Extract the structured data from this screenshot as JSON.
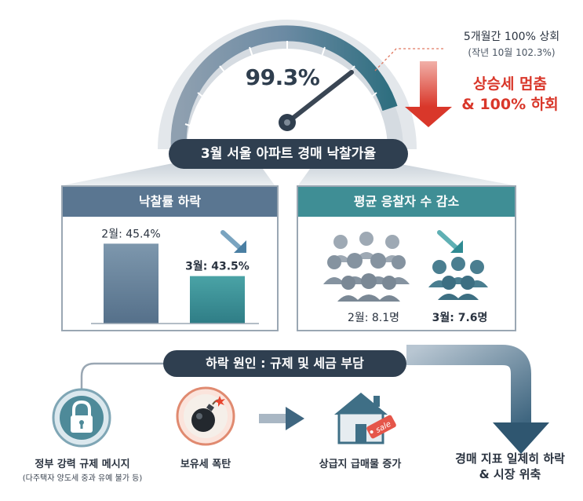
{
  "gauge": {
    "value_text": "99.3%",
    "fill_fraction": 0.993
  },
  "note": {
    "main": "5개월간 100% 상회",
    "sub": "(작년 10월 102.3%)",
    "trend_line1": "상승세 멈춤",
    "trend_line2": "& 100% 하회"
  },
  "title": "3월 서울 아파트 경매 낙찰가율",
  "left_panel": {
    "header": "낙찰률 하락",
    "chart_data": {
      "type": "bar",
      "categories": [
        "2월",
        "3월"
      ],
      "values": [
        45.4,
        43.5
      ],
      "labels": [
        "2월: 45.4%",
        "3월: 43.5%"
      ]
    }
  },
  "right_panel": {
    "header": "평균 응찰자 수 감소",
    "feb_label": "2월: 8.1명",
    "mar_label": "3월: 7.6명"
  },
  "cause": {
    "title": "하락 원인 : 규제 및 세금 부담",
    "item1": "정부 강력 규제 메시지",
    "item1_sub": "(다주택자 양도세 중과 유예 불가 등)",
    "item2": "보유세 폭탄",
    "item3": "상급지 급매물 증가",
    "result_line1": "경매 지표 일제히 하락",
    "result_line2": "& 시장 위축",
    "sale_tag": "sale"
  },
  "colors": {
    "dark": "#2f3f50",
    "red": "#d9372a",
    "slate": "#5a7691",
    "teal": "#3f8e95"
  }
}
